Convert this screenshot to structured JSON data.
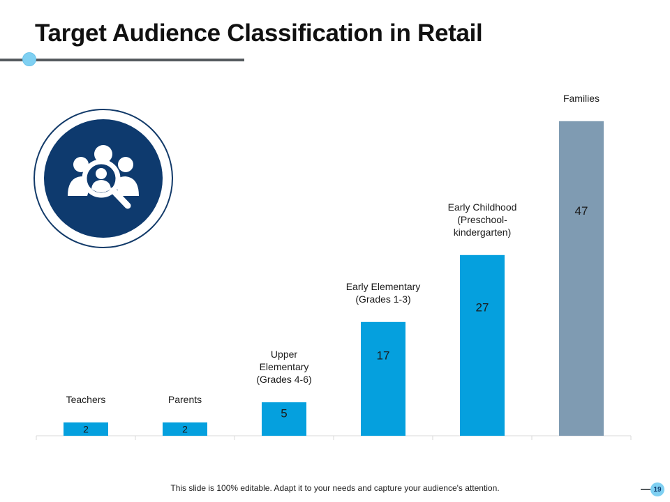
{
  "slide": {
    "title": "Target Audience Classification in Retail",
    "footer": "This slide is 100% editable. Adapt it to your needs and capture your audience's attention.",
    "page_number": "19"
  },
  "icons": {
    "badge": "audience-search-icon"
  },
  "colors": {
    "bar": "#05a0de",
    "bar_highlight": "#7f9bb2",
    "badge": "#0e3a6e",
    "accent": "#7fd0f2",
    "rule": "#555a5e"
  },
  "chart_data": {
    "type": "bar",
    "categories": [
      [
        "Teachers"
      ],
      [
        "Parents"
      ],
      [
        "Upper",
        "Elementary",
        "(Grades 4-6)"
      ],
      [
        "Early Elementary",
        "(Grades 1-3)"
      ],
      [
        "Early Childhood",
        "(Preschool-",
        "kindergarten)"
      ],
      [
        "Families"
      ]
    ],
    "values": [
      2,
      2,
      5,
      17,
      27,
      47
    ],
    "data_labels": [
      "2",
      "2",
      "5",
      "17",
      "27",
      "47"
    ],
    "highlight_index": 5,
    "ylim": [
      0,
      50
    ],
    "grid": false,
    "legend": false,
    "title": "",
    "xlabel": "",
    "ylabel": ""
  }
}
